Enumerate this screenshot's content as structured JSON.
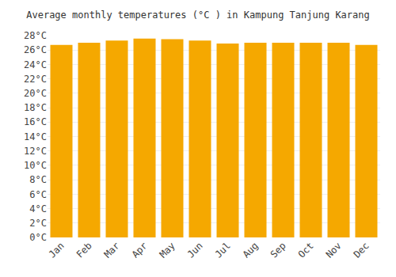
{
  "chart_data": {
    "type": "bar",
    "title": "Average monthly temperatures (°C ) in Kampung Tanjung Karang",
    "categories": [
      "Jan",
      "Feb",
      "Mar",
      "Apr",
      "May",
      "Jun",
      "Jul",
      "Aug",
      "Sep",
      "Oct",
      "Nov",
      "Dec"
    ],
    "values": [
      26.7,
      27.0,
      27.3,
      27.6,
      27.5,
      27.3,
      26.9,
      27.0,
      27.0,
      27.0,
      27.0,
      26.7
    ],
    "color": "#F5A800",
    "ylim": [
      0,
      28
    ],
    "yticks": [
      {
        "value": 0,
        "label": "0°C"
      },
      {
        "value": 2,
        "label": "2°C"
      },
      {
        "value": 4,
        "label": "4°C"
      },
      {
        "value": 6,
        "label": "6°C"
      },
      {
        "value": 8,
        "label": "8°C"
      },
      {
        "value": 10,
        "label": "10°C"
      },
      {
        "value": 12,
        "label": "12°C"
      },
      {
        "value": 14,
        "label": "14°C"
      },
      {
        "value": 16,
        "label": "16°C"
      },
      {
        "value": 18,
        "label": "18°C"
      },
      {
        "value": 20,
        "label": "20°C"
      },
      {
        "value": 22,
        "label": "22°C"
      },
      {
        "value": 24,
        "label": "24°C"
      },
      {
        "value": 26,
        "label": "26°C"
      },
      {
        "value": 28,
        "label": "28°C"
      }
    ],
    "grid": true
  }
}
